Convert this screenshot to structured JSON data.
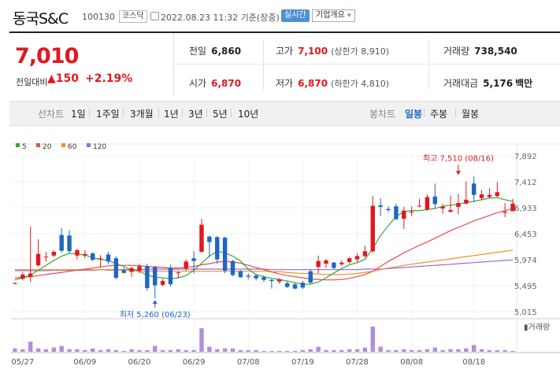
{
  "header": {
    "name": "동국S&C",
    "code": "100130",
    "market": "코스닥",
    "datetime": "2022.08.23 11:32 기준(장중)",
    "realtime": "실시간",
    "info_button": "기업개요",
    "info_arrow": "▾"
  },
  "price": {
    "current": "7,010",
    "change_label": "전일대비",
    "change_arrow": "▲",
    "change_value": "150",
    "change_rate": "+2.19%"
  },
  "stats": {
    "prev_close": {
      "label": "전일",
      "value": "6,860"
    },
    "high": {
      "label": "고가",
      "value": "7,100",
      "sub": "(상한가 8,910)"
    },
    "volume": {
      "label": "거래량",
      "value": "738,540"
    },
    "open": {
      "label": "시가",
      "value": "6,870"
    },
    "low": {
      "label": "저가",
      "value": "6,870",
      "sub": "(하한가 4,810)"
    },
    "amount": {
      "label": "거래대금",
      "value": "5,176",
      "unit": "백만"
    }
  },
  "tabs": {
    "line_chart": "선차트",
    "periods": [
      "1일",
      "1주일",
      "3개월",
      "1년",
      "3년",
      "5년",
      "10년"
    ],
    "candle_chart": "봉차트",
    "candle_periods": [
      "일봉",
      "주봉",
      "월봉"
    ],
    "active_candle": "일봉"
  },
  "colors": {
    "up": "#e0191f",
    "down": "#1f66c4",
    "ma5": "#3aa53a",
    "ma20": "#e84c4c",
    "ma60": "#f0902a",
    "ma120": "#9b6ad6",
    "volume": "#b08fd8"
  },
  "chart_data": {
    "type": "candlestick",
    "legend": [
      "5",
      "20",
      "60",
      "120"
    ],
    "y_ticks": [
      "7,892",
      "7,412",
      "6,933",
      "6,453",
      "5,974",
      "5,495",
      "5,015"
    ],
    "ylim": [
      5015,
      7892
    ],
    "x_ticks": [
      {
        "label": "05/27",
        "index": 1
      },
      {
        "label": "06/09",
        "index": 9
      },
      {
        "label": "06/20",
        "index": 16
      },
      {
        "label": "06/29",
        "index": 23
      },
      {
        "label": "07/08",
        "index": 30
      },
      {
        "label": "07/19",
        "index": 37
      },
      {
        "label": "07/28",
        "index": 44
      },
      {
        "label": "08/08",
        "index": 51
      },
      {
        "label": "08/18",
        "index": 59
      }
    ],
    "volume_label": "거래량",
    "high_annotation": {
      "text": "최고 7,510 (08/16)",
      "value": 7510,
      "index": 57
    },
    "low_annotation": {
      "text": "최저 5,260 (06/23)",
      "value": 5260,
      "index": 18
    },
    "candles": [
      [
        5540,
        5560,
        5520,
        5540
      ],
      [
        5620,
        5740,
        5600,
        5700
      ],
      [
        5660,
        6580,
        5560,
        5720
      ],
      [
        5870,
        6350,
        5850,
        6080
      ],
      [
        6020,
        6120,
        5940,
        6030
      ],
      [
        6050,
        6150,
        6020,
        6120
      ],
      [
        6430,
        6560,
        6100,
        6140
      ],
      [
        6420,
        6520,
        6100,
        6130
      ],
      [
        6050,
        6180,
        5980,
        6150
      ],
      [
        6050,
        6150,
        6000,
        6080
      ],
      [
        6090,
        6110,
        5950,
        5970
      ],
      [
        5990,
        6060,
        5830,
        6000
      ],
      [
        6070,
        6120,
        5890,
        5940
      ],
      [
        6000,
        6040,
        5610,
        5640
      ],
      [
        5780,
        5830,
        5720,
        5730
      ],
      [
        5750,
        5840,
        5660,
        5820
      ],
      [
        5770,
        5900,
        5720,
        5850
      ],
      [
        5850,
        5900,
        5400,
        5450
      ],
      [
        5840,
        5860,
        5260,
        5500
      ],
      [
        5510,
        5620,
        5480,
        5580
      ],
      [
        5820,
        5880,
        5480,
        5520
      ],
      [
        5730,
        5760,
        5640,
        5740
      ],
      [
        5810,
        5980,
        5770,
        5940
      ],
      [
        6000,
        6130,
        5720,
        5950
      ],
      [
        6120,
        6730,
        6100,
        6620
      ],
      [
        6400,
        6420,
        6020,
        6300
      ],
      [
        6390,
        6410,
        5900,
        5980
      ],
      [
        6380,
        6400,
        5720,
        5770
      ],
      [
        5950,
        5970,
        5670,
        5690
      ],
      [
        5760,
        5780,
        5640,
        5650
      ],
      [
        5680,
        5720,
        5610,
        5660
      ],
      [
        5680,
        5700,
        5590,
        5630
      ],
      [
        5650,
        5680,
        5560,
        5600
      ],
      [
        5600,
        5620,
        5440,
        5580
      ],
      [
        5570,
        5630,
        5530,
        5610
      ],
      [
        5540,
        5570,
        5450,
        5470
      ],
      [
        5520,
        5540,
        5430,
        5440
      ],
      [
        5550,
        5580,
        5430,
        5460
      ],
      [
        5760,
        5800,
        5530,
        5550
      ],
      [
        5840,
        6050,
        5720,
        5950
      ],
      [
        5900,
        5990,
        5820,
        5960
      ],
      [
        5920,
        5930,
        5800,
        5820
      ],
      [
        5890,
        5960,
        5860,
        5920
      ],
      [
        5930,
        6020,
        5900,
        6000
      ],
      [
        5980,
        6090,
        5930,
        6040
      ],
      [
        6040,
        6230,
        6010,
        6130
      ],
      [
        6130,
        7150,
        6100,
        6970
      ],
      [
        6980,
        7110,
        6780,
        6950
      ],
      [
        6910,
        6960,
        6850,
        6890
      ],
      [
        6960,
        7010,
        6710,
        6720
      ],
      [
        6730,
        6950,
        6540,
        6880
      ],
      [
        6850,
        6960,
        6780,
        6860
      ],
      [
        6960,
        7100,
        6940,
        6970
      ],
      [
        6900,
        7180,
        6880,
        7130
      ],
      [
        7140,
        7380,
        6920,
        7000
      ],
      [
        6920,
        7010,
        6820,
        6950
      ],
      [
        6860,
        7160,
        6840,
        6890
      ],
      [
        6950,
        7190,
        6810,
        7020
      ],
      [
        7010,
        7420,
        6990,
        7080
      ],
      [
        7380,
        7510,
        7040,
        7170
      ],
      [
        7110,
        7260,
        7080,
        7180
      ],
      [
        7130,
        7290,
        7100,
        7170
      ],
      [
        7150,
        7410,
        7120,
        7220
      ],
      [
        6840,
        7020,
        6760,
        6860
      ],
      [
        6870,
        7100,
        6870,
        7010
      ]
    ],
    "volume": [
      4,
      3,
      12,
      4,
      3,
      5,
      7,
      3,
      3,
      2,
      4,
      2,
      3,
      2,
      1,
      3,
      2,
      2,
      7,
      2,
      2,
      3,
      2,
      2,
      28,
      6,
      3,
      4,
      4,
      2,
      2,
      2,
      1,
      1,
      1,
      1,
      1,
      2,
      3,
      6,
      2,
      2,
      2,
      3,
      3,
      5,
      30,
      6,
      2,
      2,
      3,
      2,
      2,
      3,
      5,
      2,
      3,
      3,
      4,
      8,
      3,
      2,
      2,
      2,
      1
    ],
    "ma5": [
      5600,
      5640,
      5690,
      5780,
      5870,
      5960,
      6040,
      6090,
      6080,
      6060,
      6010,
      5980,
      5960,
      5900,
      5850,
      5780,
      5760,
      5690,
      5650,
      5640,
      5620,
      5640,
      5680,
      5780,
      5910,
      6040,
      6130,
      6100,
      6040,
      5950,
      5800,
      5700,
      5660,
      5630,
      5610,
      5580,
      5550,
      5520,
      5520,
      5560,
      5640,
      5730,
      5810,
      5880,
      5920,
      5980,
      6180,
      6420,
      6600,
      6770,
      6860,
      6880,
      6880,
      6900,
      6920,
      6960,
      6980,
      7000,
      7030,
      7050,
      7080,
      7110,
      7120,
      7080,
      7050
    ],
    "ma20": [
      5640,
      5650,
      5660,
      5680,
      5700,
      5720,
      5740,
      5760,
      5780,
      5800,
      5820,
      5840,
      5860,
      5870,
      5870,
      5870,
      5860,
      5850,
      5840,
      5830,
      5820,
      5820,
      5830,
      5850,
      5880,
      5900,
      5930,
      5940,
      5930,
      5910,
      5870,
      5830,
      5790,
      5750,
      5710,
      5680,
      5660,
      5640,
      5620,
      5610,
      5600,
      5600,
      5610,
      5630,
      5660,
      5700,
      5760,
      5850,
      5940,
      6020,
      6100,
      6170,
      6240,
      6300,
      6370,
      6440,
      6510,
      6570,
      6630,
      6690,
      6740,
      6790,
      6840,
      6880,
      6920
    ],
    "ma60": [
      5790,
      5790,
      5790,
      5790,
      5790,
      5790,
      5790,
      5790,
      5790,
      5790,
      5790,
      5790,
      5780,
      5780,
      5780,
      5770,
      5770,
      5760,
      5760,
      5760,
      5760,
      5760,
      5760,
      5760,
      5760,
      5760,
      5760,
      5760,
      5760,
      5760,
      5760,
      5760,
      5760,
      5750,
      5750,
      5740,
      5730,
      5720,
      5720,
      5710,
      5700,
      5700,
      5700,
      5710,
      5720,
      5740,
      5760,
      5790,
      5820,
      5840,
      5870,
      5890,
      5910,
      5930,
      5950,
      5970,
      5990,
      6010,
      6030,
      6050,
      6070,
      6090,
      6110,
      6130,
      6150
    ],
    "ma120": [
      5770,
      5770,
      5770,
      5770,
      5770,
      5780,
      5780,
      5780,
      5780,
      5780,
      5780,
      5790,
      5790,
      5790,
      5790,
      5790,
      5790,
      5800,
      5800,
      5800,
      5800,
      5800,
      5800,
      5800,
      5800,
      5800,
      5800,
      5800,
      5800,
      5800,
      5800,
      5800,
      5800,
      5790,
      5790,
      5790,
      5790,
      5790,
      5790,
      5790,
      5790,
      5790,
      5790,
      5790,
      5790,
      5800,
      5800,
      5800,
      5810,
      5820,
      5830,
      5840,
      5850,
      5860,
      5870,
      5880,
      5890,
      5900,
      5910,
      5920,
      5930,
      5940,
      5950,
      5960,
      5970
    ]
  }
}
